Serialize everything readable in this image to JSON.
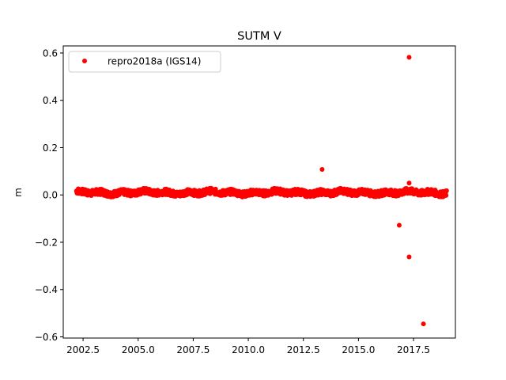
{
  "chart_data": {
    "type": "scatter",
    "title": "SUTM V",
    "xlabel": "",
    "ylabel": "m",
    "xlim": [
      2001.6,
      2019.4
    ],
    "ylim": [
      -0.605,
      0.63
    ],
    "x_ticks": [
      "2002.5",
      "2005.0",
      "2007.5",
      "2010.0",
      "2012.5",
      "2015.0",
      "2017.5"
    ],
    "y_ticks": [
      "−0.6",
      "−0.4",
      "−0.2",
      "0.0",
      "0.2",
      "0.4",
      "0.6"
    ],
    "grid": false,
    "legend_position": "top-left",
    "series": [
      {
        "name": "repro2018a (IGS14)",
        "color": "#ff0000",
        "marker": "circle",
        "x_range": [
          2002.2,
          2019.0
        ],
        "baseline": 0.01,
        "scatter_amplitude": 0.012,
        "outliers": [
          {
            "x": 2013.35,
            "y": 0.108
          },
          {
            "x": 2016.85,
            "y": -0.128
          },
          {
            "x": 2017.3,
            "y": 0.582
          },
          {
            "x": 2017.3,
            "y": 0.05
          },
          {
            "x": 2017.3,
            "y": -0.262
          },
          {
            "x": 2017.95,
            "y": -0.545
          }
        ]
      }
    ]
  }
}
